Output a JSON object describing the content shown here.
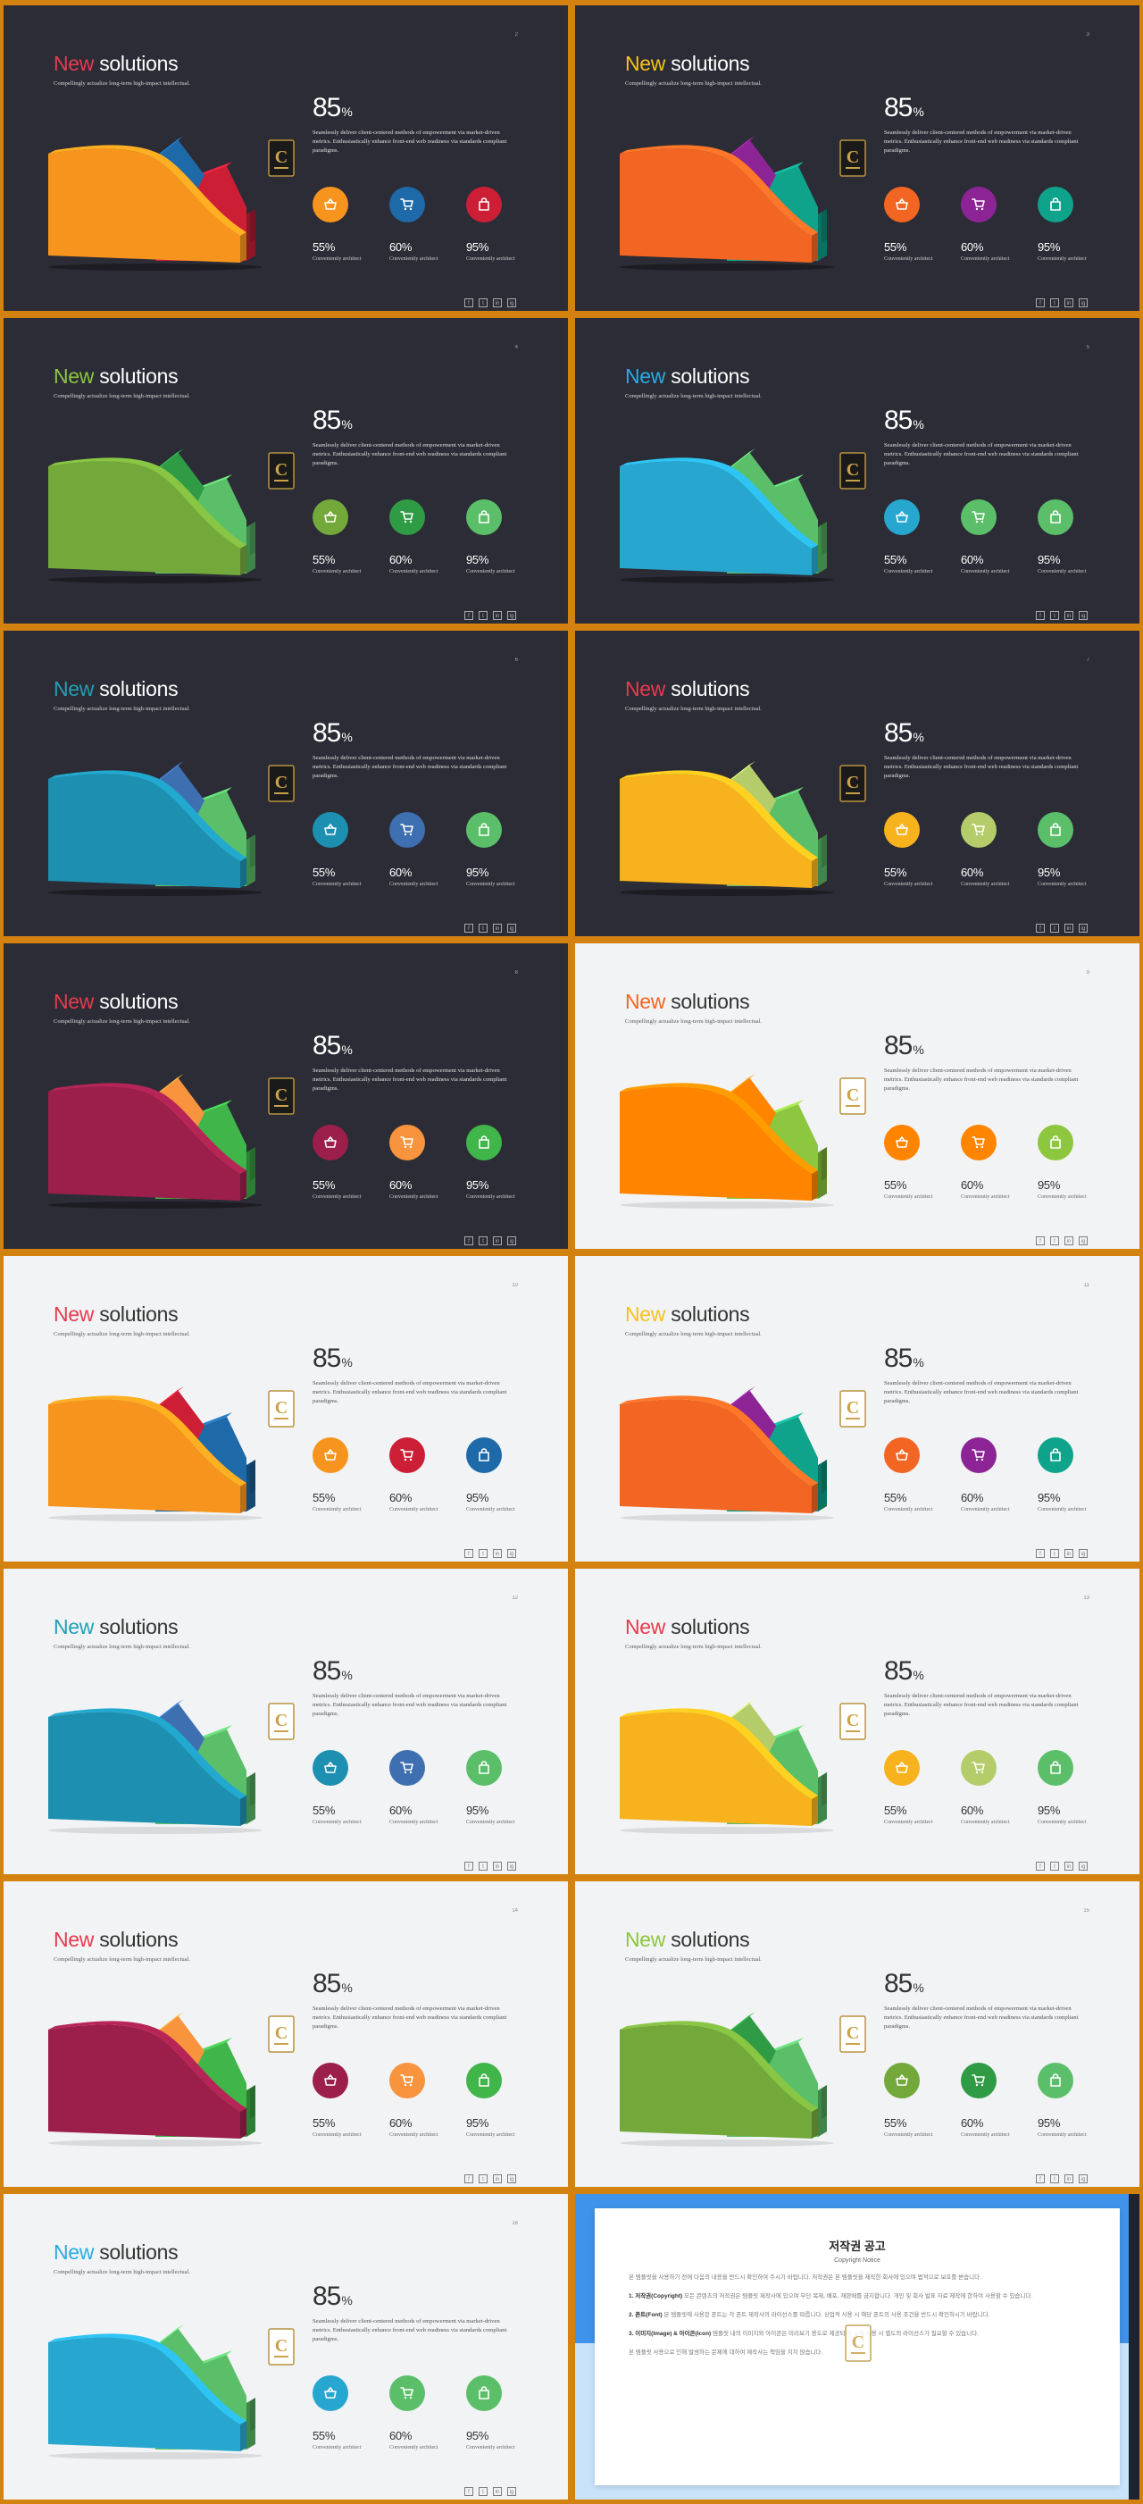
{
  "slide_common": {
    "title_accent": "New",
    "title_rest": " solutions",
    "subtitle": "Compellingly actualize long-term high-impact intellectual.",
    "big_value": "85",
    "big_unit": "%",
    "description": "Seamlessly deliver client-centered methods of empowerment via market-driven metrics. Enthusiastically enhance front-end web readiness via standards compliant paradigms.",
    "stats": [
      {
        "value": "55%",
        "label": "Conveniently architect",
        "icon": "basket-icon"
      },
      {
        "value": "60%",
        "label": "Conveniently architect",
        "icon": "cart-icon"
      },
      {
        "value": "95%",
        "label": "Conveniently architect",
        "icon": "bag-icon"
      }
    ],
    "social": [
      "f",
      "t",
      "in",
      "ig"
    ],
    "logo_letter": "C"
  },
  "slides": [
    {
      "page": "2",
      "theme": "dark",
      "accent": "#e83a4f",
      "colors": [
        "#f7941d",
        "#1e69a8",
        "#cc1f36"
      ],
      "values": [
        0.55,
        0.6,
        0.95
      ]
    },
    {
      "page": "3",
      "theme": "dark",
      "accent": "#f5c21b",
      "colors": [
        "#f26522",
        "#8d2496",
        "#0fa38c"
      ],
      "values": [
        0.55,
        0.6,
        0.95
      ]
    },
    {
      "page": "4",
      "theme": "dark",
      "accent": "#8dc63f",
      "colors": [
        "#73a83a",
        "#2f9b45",
        "#5bbf6a"
      ],
      "values": [
        0.55,
        0.6,
        0.95
      ]
    },
    {
      "page": "5",
      "theme": "dark",
      "accent": "#29abe2",
      "colors": [
        "#27a7cf",
        "#5bbf6a",
        "#5bbf6a"
      ],
      "values": [
        0.55,
        0.6,
        0.95
      ]
    },
    {
      "page": "6",
      "theme": "dark",
      "accent": "#21a0b5",
      "colors": [
        "#1d8fb0",
        "#3e6fb0",
        "#5bbf6a"
      ],
      "values": [
        0.55,
        0.6,
        0.95
      ]
    },
    {
      "page": "7",
      "theme": "dark",
      "accent": "#e83a4f",
      "colors": [
        "#f7b21d",
        "#b5cc6a",
        "#5bbf6a"
      ],
      "values": [
        0.55,
        0.6,
        0.95
      ]
    },
    {
      "page": "8",
      "theme": "dark",
      "accent": "#e83a4f",
      "colors": [
        "#9b1f4a",
        "#f7943d",
        "#3fb54a"
      ],
      "values": [
        0.55,
        0.6,
        0.95
      ]
    },
    {
      "page": "9",
      "theme": "light",
      "accent": "#f26522",
      "colors": [
        "#ff8400",
        "#ff8400",
        "#8dc63f"
      ],
      "values": [
        0.55,
        0.6,
        0.95
      ]
    },
    {
      "page": "10",
      "theme": "light",
      "accent": "#e83a4f",
      "colors": [
        "#f7941d",
        "#cc1f36",
        "#1e69a8"
      ],
      "values": [
        0.55,
        0.6,
        0.95
      ]
    },
    {
      "page": "11",
      "theme": "light",
      "accent": "#f5c21b",
      "colors": [
        "#f26522",
        "#8d2496",
        "#0fa38c"
      ],
      "values": [
        0.55,
        0.6,
        0.95
      ]
    },
    {
      "page": "12",
      "theme": "light",
      "accent": "#21a0b5",
      "colors": [
        "#1d8fb0",
        "#3e6fb0",
        "#5bbf6a"
      ],
      "values": [
        0.55,
        0.6,
        0.95
      ]
    },
    {
      "page": "13",
      "theme": "light",
      "accent": "#e83a4f",
      "colors": [
        "#f7b21d",
        "#b5cc6a",
        "#5bbf6a"
      ],
      "values": [
        0.55,
        0.6,
        0.95
      ]
    },
    {
      "page": "14",
      "theme": "light",
      "accent": "#e83a4f",
      "colors": [
        "#9b1f4a",
        "#f7943d",
        "#3fb54a"
      ],
      "values": [
        0.55,
        0.6,
        0.95
      ]
    },
    {
      "page": "15",
      "theme": "light",
      "accent": "#8dc63f",
      "colors": [
        "#73a83a",
        "#2f9b45",
        "#5bbf6a"
      ],
      "values": [
        0.55,
        0.6,
        0.95
      ]
    },
    {
      "page": "16",
      "theme": "light",
      "accent": "#29abe2",
      "colors": [
        "#27a7cf",
        "#5bbf6a",
        "#5bbf6a"
      ],
      "values": [
        0.55,
        0.6,
        0.95
      ]
    }
  ],
  "notice": {
    "title": "저작권 공고",
    "subtitle": "Copyright Notice",
    "intro": "본 템플릿을 사용하기 전에 다음의 내용을 반드시 확인하여 주시기 바랍니다. 저작권은 본 템플릿을 제작한 회사에 있으며 법적으로 보호를 받습니다.",
    "p1_head": "1. 저작권(Copyright)",
    "p1": "모든 콘텐츠의 저작권은 템플릿 제작사에 있으며 무단 복제, 배포, 재판매를 금지합니다. 개인 및 회사 발표 자료 제작에 한하여 사용할 수 있습니다.",
    "p2_head": "2. 폰트(Font)",
    "p2": "본 템플릿에 사용된 폰트는 각 폰트 제작사의 라이선스를 따릅니다. 상업적 사용 시 해당 폰트의 사용 조건을 반드시 확인하시기 바랍니다.",
    "p3_head": "3. 이미지(Image) & 아이콘(Icon)",
    "p3": "템플릿 내의 이미지와 아이콘은 미리보기 용도로 제공되며, 실제 사용 시 별도의 라이선스가 필요할 수 있습니다.",
    "outro": "본 템플릿 사용으로 인해 발생하는 문제에 대하여 제작사는 책임을 지지 않습니다."
  }
}
